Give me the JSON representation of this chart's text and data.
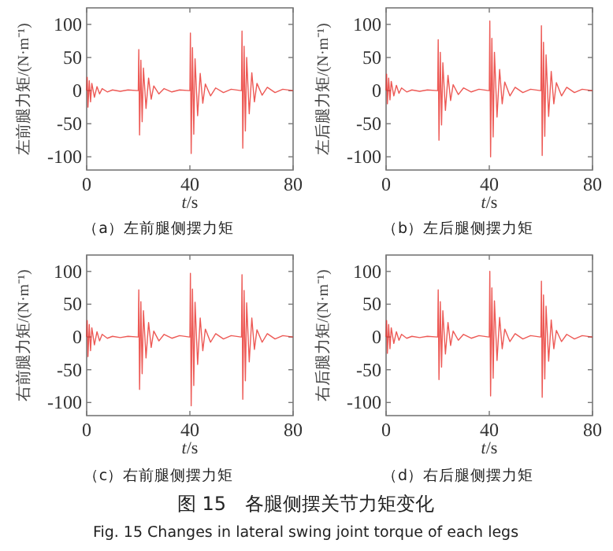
{
  "chart_data": [
    {
      "type": "line",
      "title": "（a）左前腿侧摆力矩",
      "xlabel": "t/s",
      "ylabel": "左前腿力矩/(N·m⁻¹)",
      "xlim": [
        0,
        80
      ],
      "xticks": [
        0,
        40,
        80
      ],
      "ylim": [
        -120,
        125
      ],
      "yticks": [
        -100,
        -50,
        0,
        50,
        100
      ],
      "x": [
        0,
        0.2,
        0.5,
        1,
        1.5,
        2,
        3,
        4,
        5,
        6,
        8,
        10,
        13,
        16,
        19.8,
        20,
        20.2,
        20.5,
        21,
        21.5,
        22,
        23,
        24,
        25,
        26,
        28,
        30,
        33,
        36,
        39.8,
        40,
        40.2,
        40.5,
        41,
        41.5,
        42,
        43,
        44,
        45,
        46,
        48,
        50,
        53,
        56,
        59.8,
        60,
        60.2,
        60.5,
        61,
        61.5,
        62,
        63,
        64,
        65,
        66,
        68,
        70,
        73,
        76,
        79.8,
        80
      ],
      "series": [
        {
          "color": "#e8302a",
          "values": [
            0,
            20,
            -25,
            15,
            -17,
            11,
            -10,
            6,
            -5,
            3,
            -2,
            1,
            -1,
            1,
            0,
            0,
            62,
            -67,
            46,
            -47,
            34,
            -27,
            19,
            -13,
            7,
            -5,
            3,
            -2,
            1,
            0,
            0,
            87,
            -95,
            65,
            -66,
            48,
            -38,
            26,
            -19,
            10,
            -8,
            4,
            -3,
            2,
            0,
            0,
            90,
            -87,
            67,
            -61,
            50,
            -35,
            27,
            -17,
            11,
            -7,
            5,
            -3,
            2,
            0,
            0
          ]
        }
      ]
    },
    {
      "type": "line",
      "title": "（b）左后腿侧摆力矩",
      "xlabel": "t/s",
      "ylabel": "左后腿力矩/(N·m⁻¹)",
      "xlim": [
        0,
        80
      ],
      "xticks": [
        0,
        40,
        80
      ],
      "ylim": [
        -120,
        125
      ],
      "yticks": [
        -100,
        -50,
        0,
        50,
        100
      ],
      "x": [
        0,
        0.2,
        0.5,
        1,
        1.5,
        2,
        3,
        4,
        5,
        6,
        8,
        10,
        13,
        16,
        19.8,
        20,
        20.2,
        20.5,
        21,
        21.5,
        22,
        23,
        24,
        25,
        26,
        28,
        30,
        33,
        36,
        39.8,
        40,
        40.2,
        40.5,
        41,
        41.5,
        42,
        43,
        44,
        45,
        46,
        48,
        50,
        53,
        56,
        59.8,
        60,
        60.2,
        60.5,
        61,
        61.5,
        62,
        63,
        64,
        65,
        66,
        68,
        70,
        73,
        76,
        79.8,
        80
      ],
      "series": [
        {
          "color": "#e8302a",
          "values": [
            0,
            25,
            -20,
            19,
            -14,
            14,
            -8,
            8,
            -4,
            4,
            -2,
            1,
            -1,
            1,
            0,
            0,
            77,
            -75,
            58,
            -52,
            42,
            -30,
            23,
            -15,
            9,
            -6,
            4,
            -2,
            2,
            0,
            0,
            105,
            -100,
            79,
            -70,
            58,
            -40,
            32,
            -20,
            13,
            -8,
            5,
            -3,
            2,
            0,
            0,
            98,
            -98,
            73,
            -69,
            54,
            -39,
            29,
            -20,
            12,
            -8,
            5,
            -3,
            2,
            0,
            0
          ]
        }
      ]
    },
    {
      "type": "line",
      "title": "（c）右前腿侧摆力矩",
      "xlabel": "t/s",
      "ylabel": "右前腿力矩/(N·m⁻¹)",
      "xlim": [
        0,
        80
      ],
      "xticks": [
        0,
        40,
        80
      ],
      "ylim": [
        -120,
        125
      ],
      "yticks": [
        -100,
        -50,
        0,
        50,
        100
      ],
      "x": [
        0,
        0.2,
        0.5,
        1,
        1.5,
        2,
        3,
        4,
        5,
        6,
        8,
        10,
        13,
        16,
        19.8,
        20,
        20.2,
        20.5,
        21,
        21.5,
        22,
        23,
        24,
        25,
        26,
        28,
        30,
        33,
        36,
        39.8,
        40,
        40.2,
        40.5,
        41,
        41.5,
        42,
        43,
        44,
        45,
        46,
        48,
        50,
        53,
        56,
        59.8,
        60,
        60.2,
        60.5,
        61,
        61.5,
        62,
        63,
        64,
        65,
        66,
        68,
        70,
        73,
        76,
        79.8,
        80
      ],
      "series": [
        {
          "color": "#e8302a",
          "values": [
            0,
            25,
            -30,
            19,
            -21,
            14,
            -12,
            8,
            -6,
            4,
            -2,
            1,
            -1,
            1,
            0,
            0,
            72,
            -80,
            54,
            -56,
            40,
            -32,
            22,
            -16,
            9,
            -6,
            4,
            -2,
            2,
            0,
            0,
            97,
            -105,
            73,
            -74,
            53,
            -42,
            29,
            -21,
            12,
            -8,
            5,
            -3,
            2,
            0,
            0,
            95,
            -95,
            71,
            -67,
            52,
            -38,
            29,
            -19,
            11,
            -8,
            5,
            -3,
            2,
            0,
            0
          ]
        }
      ]
    },
    {
      "type": "line",
      "title": "（d）右后腿侧摆力矩",
      "xlabel": "t/s",
      "ylabel": "右后腿力矩/(N·m⁻¹)",
      "xlim": [
        0,
        80
      ],
      "xticks": [
        0,
        40,
        80
      ],
      "ylim": [
        -120,
        125
      ],
      "yticks": [
        -100,
        -50,
        0,
        50,
        100
      ],
      "annotations": [
        "图 15　各腿侧摆关节力矩变化",
        "Fig. 15 Changes in lateral swing joint torque of each legs"
      ],
      "x": [
        0,
        0.2,
        0.5,
        1,
        1.5,
        2,
        3,
        4,
        5,
        6,
        8,
        10,
        13,
        16,
        19.8,
        20,
        20.2,
        20.5,
        21,
        21.5,
        22,
        23,
        24,
        25,
        26,
        28,
        30,
        33,
        36,
        39.8,
        40,
        40.2,
        40.5,
        41,
        41.5,
        42,
        43,
        44,
        45,
        46,
        48,
        50,
        53,
        56,
        59.8,
        60,
        60.2,
        60.5,
        61,
        61.5,
        62,
        63,
        64,
        65,
        66,
        68,
        70,
        73,
        76,
        79.8,
        80
      ],
      "series": [
        {
          "color": "#e8302a",
          "values": [
            0,
            25,
            -25,
            19,
            -18,
            14,
            -10,
            8,
            -5,
            4,
            -2,
            1,
            -1,
            1,
            0,
            0,
            72,
            -65,
            54,
            -46,
            40,
            -26,
            22,
            -13,
            9,
            -5,
            4,
            -2,
            2,
            0,
            0,
            100,
            -90,
            75,
            -63,
            55,
            -36,
            30,
            -18,
            12,
            -7,
            5,
            -3,
            2,
            0,
            0,
            85,
            -92,
            64,
            -64,
            47,
            -37,
            26,
            -18,
            10,
            -7,
            4,
            -3,
            2,
            0,
            0
          ]
        }
      ]
    }
  ]
}
